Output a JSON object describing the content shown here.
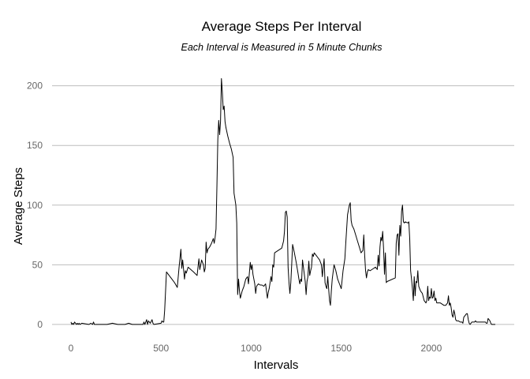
{
  "chart_data": {
    "type": "line",
    "title": "Average Steps Per Interval",
    "subtitle": "Each Interval is Measured in 5 Minute Chunks",
    "xlabel": "Intervals",
    "ylabel": "Average Steps",
    "xlim": [
      -105,
      2460
    ],
    "ylim": [
      -10,
      211
    ],
    "xticks": [
      0,
      500,
      1000,
      1500,
      2000
    ],
    "yticks": [
      0,
      50,
      100,
      150,
      200
    ],
    "grid": "horizontal",
    "series": [
      {
        "values": [
          [
            0,
            2
          ],
          [
            5,
            0
          ],
          [
            10,
            1
          ],
          [
            15,
            0
          ],
          [
            20,
            2
          ],
          [
            25,
            1
          ],
          [
            30,
            0
          ],
          [
            35,
            1
          ],
          [
            40,
            0
          ],
          [
            45,
            1
          ],
          [
            50,
            0
          ],
          [
            60,
            1
          ],
          [
            100,
            0
          ],
          [
            110,
            1
          ],
          [
            120,
            0
          ],
          [
            125,
            2
          ],
          [
            130,
            0
          ],
          [
            200,
            0
          ],
          [
            230,
            1
          ],
          [
            260,
            0
          ],
          [
            300,
            0
          ],
          [
            320,
            1
          ],
          [
            340,
            0
          ],
          [
            400,
            0
          ],
          [
            405,
            2
          ],
          [
            410,
            0
          ],
          [
            420,
            4
          ],
          [
            425,
            0
          ],
          [
            430,
            3
          ],
          [
            440,
            1
          ],
          [
            450,
            4
          ],
          [
            455,
            1
          ],
          [
            460,
            0
          ],
          [
            500,
            1
          ],
          [
            505,
            3
          ],
          [
            510,
            2
          ],
          [
            515,
            2
          ],
          [
            520,
            12
          ],
          [
            525,
            28
          ],
          [
            530,
            44
          ],
          [
            550,
            40
          ],
          [
            560,
            38
          ],
          [
            575,
            35
          ],
          [
            590,
            31
          ],
          [
            600,
            48
          ],
          [
            610,
            63
          ],
          [
            615,
            47
          ],
          [
            620,
            54
          ],
          [
            630,
            38
          ],
          [
            635,
            45
          ],
          [
            640,
            43
          ],
          [
            650,
            48
          ],
          [
            665,
            46
          ],
          [
            680,
            44
          ],
          [
            700,
            41
          ],
          [
            710,
            55
          ],
          [
            715,
            46
          ],
          [
            725,
            54
          ],
          [
            735,
            50
          ],
          [
            740,
            44
          ],
          [
            745,
            47
          ],
          [
            750,
            69
          ],
          [
            755,
            60
          ],
          [
            760,
            63
          ],
          [
            770,
            65
          ],
          [
            780,
            68
          ],
          [
            790,
            72
          ],
          [
            795,
            68
          ],
          [
            800,
            73
          ],
          [
            805,
            80
          ],
          [
            810,
            116
          ],
          [
            815,
            155
          ],
          [
            820,
            171
          ],
          [
            825,
            159
          ],
          [
            830,
            170
          ],
          [
            835,
            206
          ],
          [
            840,
            195
          ],
          [
            845,
            180
          ],
          [
            850,
            183
          ],
          [
            855,
            170
          ],
          [
            860,
            165
          ],
          [
            870,
            158
          ],
          [
            880,
            152
          ],
          [
            890,
            147
          ],
          [
            900,
            140
          ],
          [
            905,
            110
          ],
          [
            910,
            105
          ],
          [
            915,
            100
          ],
          [
            920,
            85
          ],
          [
            925,
            25
          ],
          [
            930,
            38
          ],
          [
            935,
            28
          ],
          [
            940,
            22
          ],
          [
            950,
            28
          ],
          [
            960,
            32
          ],
          [
            970,
            38
          ],
          [
            980,
            40
          ],
          [
            985,
            34
          ],
          [
            995,
            52
          ],
          [
            1000,
            46
          ],
          [
            1005,
            50
          ],
          [
            1010,
            42
          ],
          [
            1015,
            38
          ],
          [
            1020,
            34
          ],
          [
            1025,
            26
          ],
          [
            1030,
            32
          ],
          [
            1040,
            34
          ],
          [
            1050,
            33
          ],
          [
            1060,
            33
          ],
          [
            1070,
            32
          ],
          [
            1080,
            34
          ],
          [
            1090,
            22
          ],
          [
            1095,
            27
          ],
          [
            1100,
            30
          ],
          [
            1110,
            40
          ],
          [
            1115,
            36
          ],
          [
            1120,
            50
          ],
          [
            1125,
            48
          ],
          [
            1130,
            60
          ],
          [
            1140,
            61
          ],
          [
            1150,
            62
          ],
          [
            1160,
            63
          ],
          [
            1170,
            64
          ],
          [
            1180,
            70
          ],
          [
            1185,
            78
          ],
          [
            1190,
            94
          ],
          [
            1195,
            95
          ],
          [
            1200,
            90
          ],
          [
            1205,
            48
          ],
          [
            1210,
            35
          ],
          [
            1215,
            26
          ],
          [
            1220,
            35
          ],
          [
            1225,
            50
          ],
          [
            1230,
            67
          ],
          [
            1240,
            60
          ],
          [
            1250,
            52
          ],
          [
            1260,
            43
          ],
          [
            1265,
            38
          ],
          [
            1270,
            34
          ],
          [
            1275,
            38
          ],
          [
            1280,
            36
          ],
          [
            1285,
            54
          ],
          [
            1290,
            48
          ],
          [
            1300,
            36
          ],
          [
            1305,
            25
          ],
          [
            1310,
            36
          ],
          [
            1315,
            40
          ],
          [
            1320,
            53
          ],
          [
            1325,
            41
          ],
          [
            1330,
            45
          ],
          [
            1335,
            48
          ],
          [
            1340,
            59
          ],
          [
            1345,
            57
          ],
          [
            1350,
            60
          ],
          [
            1360,
            58
          ],
          [
            1370,
            56
          ],
          [
            1380,
            54
          ],
          [
            1390,
            50
          ],
          [
            1395,
            40
          ],
          [
            1400,
            48
          ],
          [
            1405,
            55
          ],
          [
            1410,
            35
          ],
          [
            1415,
            32
          ],
          [
            1420,
            30
          ],
          [
            1425,
            40
          ],
          [
            1430,
            30
          ],
          [
            1435,
            20
          ],
          [
            1440,
            16
          ],
          [
            1445,
            28
          ],
          [
            1450,
            38
          ],
          [
            1460,
            50
          ],
          [
            1470,
            45
          ],
          [
            1480,
            38
          ],
          [
            1490,
            34
          ],
          [
            1500,
            30
          ],
          [
            1510,
            45
          ],
          [
            1520,
            55
          ],
          [
            1525,
            68
          ],
          [
            1530,
            80
          ],
          [
            1535,
            92
          ],
          [
            1540,
            96
          ],
          [
            1545,
            100
          ],
          [
            1550,
            102
          ],
          [
            1555,
            87
          ],
          [
            1560,
            83
          ],
          [
            1570,
            80
          ],
          [
            1580,
            75
          ],
          [
            1590,
            70
          ],
          [
            1600,
            65
          ],
          [
            1610,
            60
          ],
          [
            1620,
            62
          ],
          [
            1625,
            75
          ],
          [
            1630,
            58
          ],
          [
            1635,
            45
          ],
          [
            1640,
            39
          ],
          [
            1645,
            44
          ],
          [
            1650,
            46
          ],
          [
            1660,
            45
          ],
          [
            1670,
            46
          ],
          [
            1680,
            47
          ],
          [
            1690,
            48
          ],
          [
            1700,
            46
          ],
          [
            1705,
            58
          ],
          [
            1710,
            49
          ],
          [
            1715,
            65
          ],
          [
            1720,
            73
          ],
          [
            1725,
            70
          ],
          [
            1730,
            78
          ],
          [
            1735,
            63
          ],
          [
            1740,
            42
          ],
          [
            1745,
            60
          ],
          [
            1750,
            35
          ],
          [
            1755,
            36
          ],
          [
            1800,
            39
          ],
          [
            1805,
            68
          ],
          [
            1810,
            75
          ],
          [
            1815,
            76
          ],
          [
            1820,
            58
          ],
          [
            1825,
            83
          ],
          [
            1830,
            74
          ],
          [
            1835,
            95
          ],
          [
            1840,
            100
          ],
          [
            1845,
            86
          ],
          [
            1850,
            85
          ],
          [
            1855,
            86
          ],
          [
            1870,
            85
          ],
          [
            1875,
            86
          ],
          [
            1880,
            72
          ],
          [
            1885,
            45
          ],
          [
            1890,
            38
          ],
          [
            1895,
            30
          ],
          [
            1900,
            20
          ],
          [
            1905,
            40
          ],
          [
            1910,
            24
          ],
          [
            1915,
            36
          ],
          [
            1920,
            35
          ],
          [
            1925,
            45
          ],
          [
            1930,
            32
          ],
          [
            1935,
            30
          ],
          [
            1940,
            28
          ],
          [
            1950,
            26
          ],
          [
            1960,
            20
          ],
          [
            1970,
            18
          ],
          [
            1975,
            20
          ],
          [
            1980,
            32
          ],
          [
            1985,
            20
          ],
          [
            1990,
            23
          ],
          [
            1995,
            22
          ],
          [
            2000,
            30
          ],
          [
            2005,
            22
          ],
          [
            2010,
            23
          ],
          [
            2015,
            28
          ],
          [
            2020,
            20
          ],
          [
            2025,
            22
          ],
          [
            2030,
            18
          ],
          [
            2040,
            18
          ],
          [
            2050,
            18
          ],
          [
            2060,
            17
          ],
          [
            2070,
            16
          ],
          [
            2080,
            16
          ],
          [
            2090,
            18
          ],
          [
            2095,
            24
          ],
          [
            2100,
            16
          ],
          [
            2105,
            18
          ],
          [
            2110,
            14
          ],
          [
            2115,
            8
          ],
          [
            2120,
            6
          ],
          [
            2125,
            12
          ],
          [
            2130,
            9
          ],
          [
            2135,
            4
          ],
          [
            2140,
            3
          ],
          [
            2150,
            3
          ],
          [
            2160,
            2
          ],
          [
            2170,
            2
          ],
          [
            2175,
            1
          ],
          [
            2180,
            6
          ],
          [
            2185,
            7
          ],
          [
            2190,
            8
          ],
          [
            2195,
            9
          ],
          [
            2200,
            9
          ],
          [
            2205,
            4
          ],
          [
            2210,
            1
          ],
          [
            2215,
            0
          ],
          [
            2220,
            1
          ],
          [
            2225,
            2
          ],
          [
            2230,
            2
          ],
          [
            2240,
            2
          ],
          [
            2245,
            3
          ],
          [
            2250,
            2
          ],
          [
            2255,
            2
          ],
          [
            2300,
            2
          ],
          [
            2305,
            1
          ],
          [
            2310,
            1
          ],
          [
            2315,
            5
          ],
          [
            2320,
            4
          ],
          [
            2325,
            3
          ],
          [
            2330,
            1
          ],
          [
            2335,
            0
          ],
          [
            2340,
            0
          ],
          [
            2345,
            0
          ],
          [
            2350,
            0
          ],
          [
            2355,
            0
          ]
        ]
      }
    ]
  }
}
